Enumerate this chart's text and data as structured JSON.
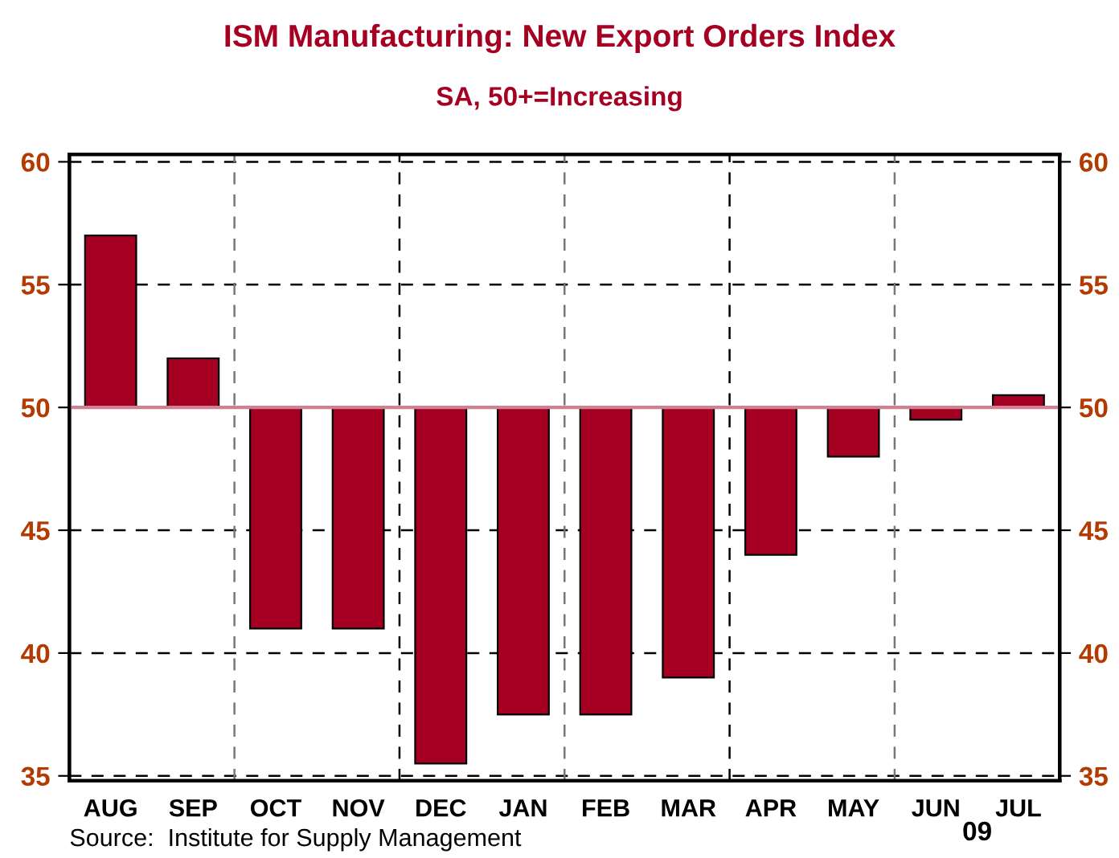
{
  "chart_data": {
    "type": "bar",
    "title": "ISM Manufacturing: New Export Orders Index",
    "subtitle": "SA, 50+=Increasing",
    "categories": [
      "AUG",
      "SEP",
      "OCT",
      "NOV",
      "DEC",
      "JAN",
      "FEB",
      "MAR",
      "APR",
      "MAY",
      "JUN",
      "JUL"
    ],
    "base": [
      50,
      50,
      50,
      50,
      50,
      50,
      50,
      50,
      50,
      50,
      50,
      50
    ],
    "values": [
      7.0,
      2.0,
      -9.0,
      -9.0,
      -14.5,
      -12.5,
      -12.5,
      -11.0,
      -6.0,
      -2.0,
      -0.5,
      0.5
    ],
    "color": "#a50021",
    "ylim": [
      34.8,
      60.3
    ],
    "yticks": [
      35,
      40,
      45,
      50,
      55,
      60
    ],
    "y2lim": [
      34.8,
      60.3
    ],
    "y2ticks": [
      35,
      40,
      45,
      50,
      55,
      60
    ],
    "ref_lines": [
      {
        "axis": "y",
        "value": 50,
        "color": "#d08090"
      }
    ],
    "grid": true,
    "annotations": [
      "09",
      "Source:  Institute for Supply Management"
    ]
  }
}
